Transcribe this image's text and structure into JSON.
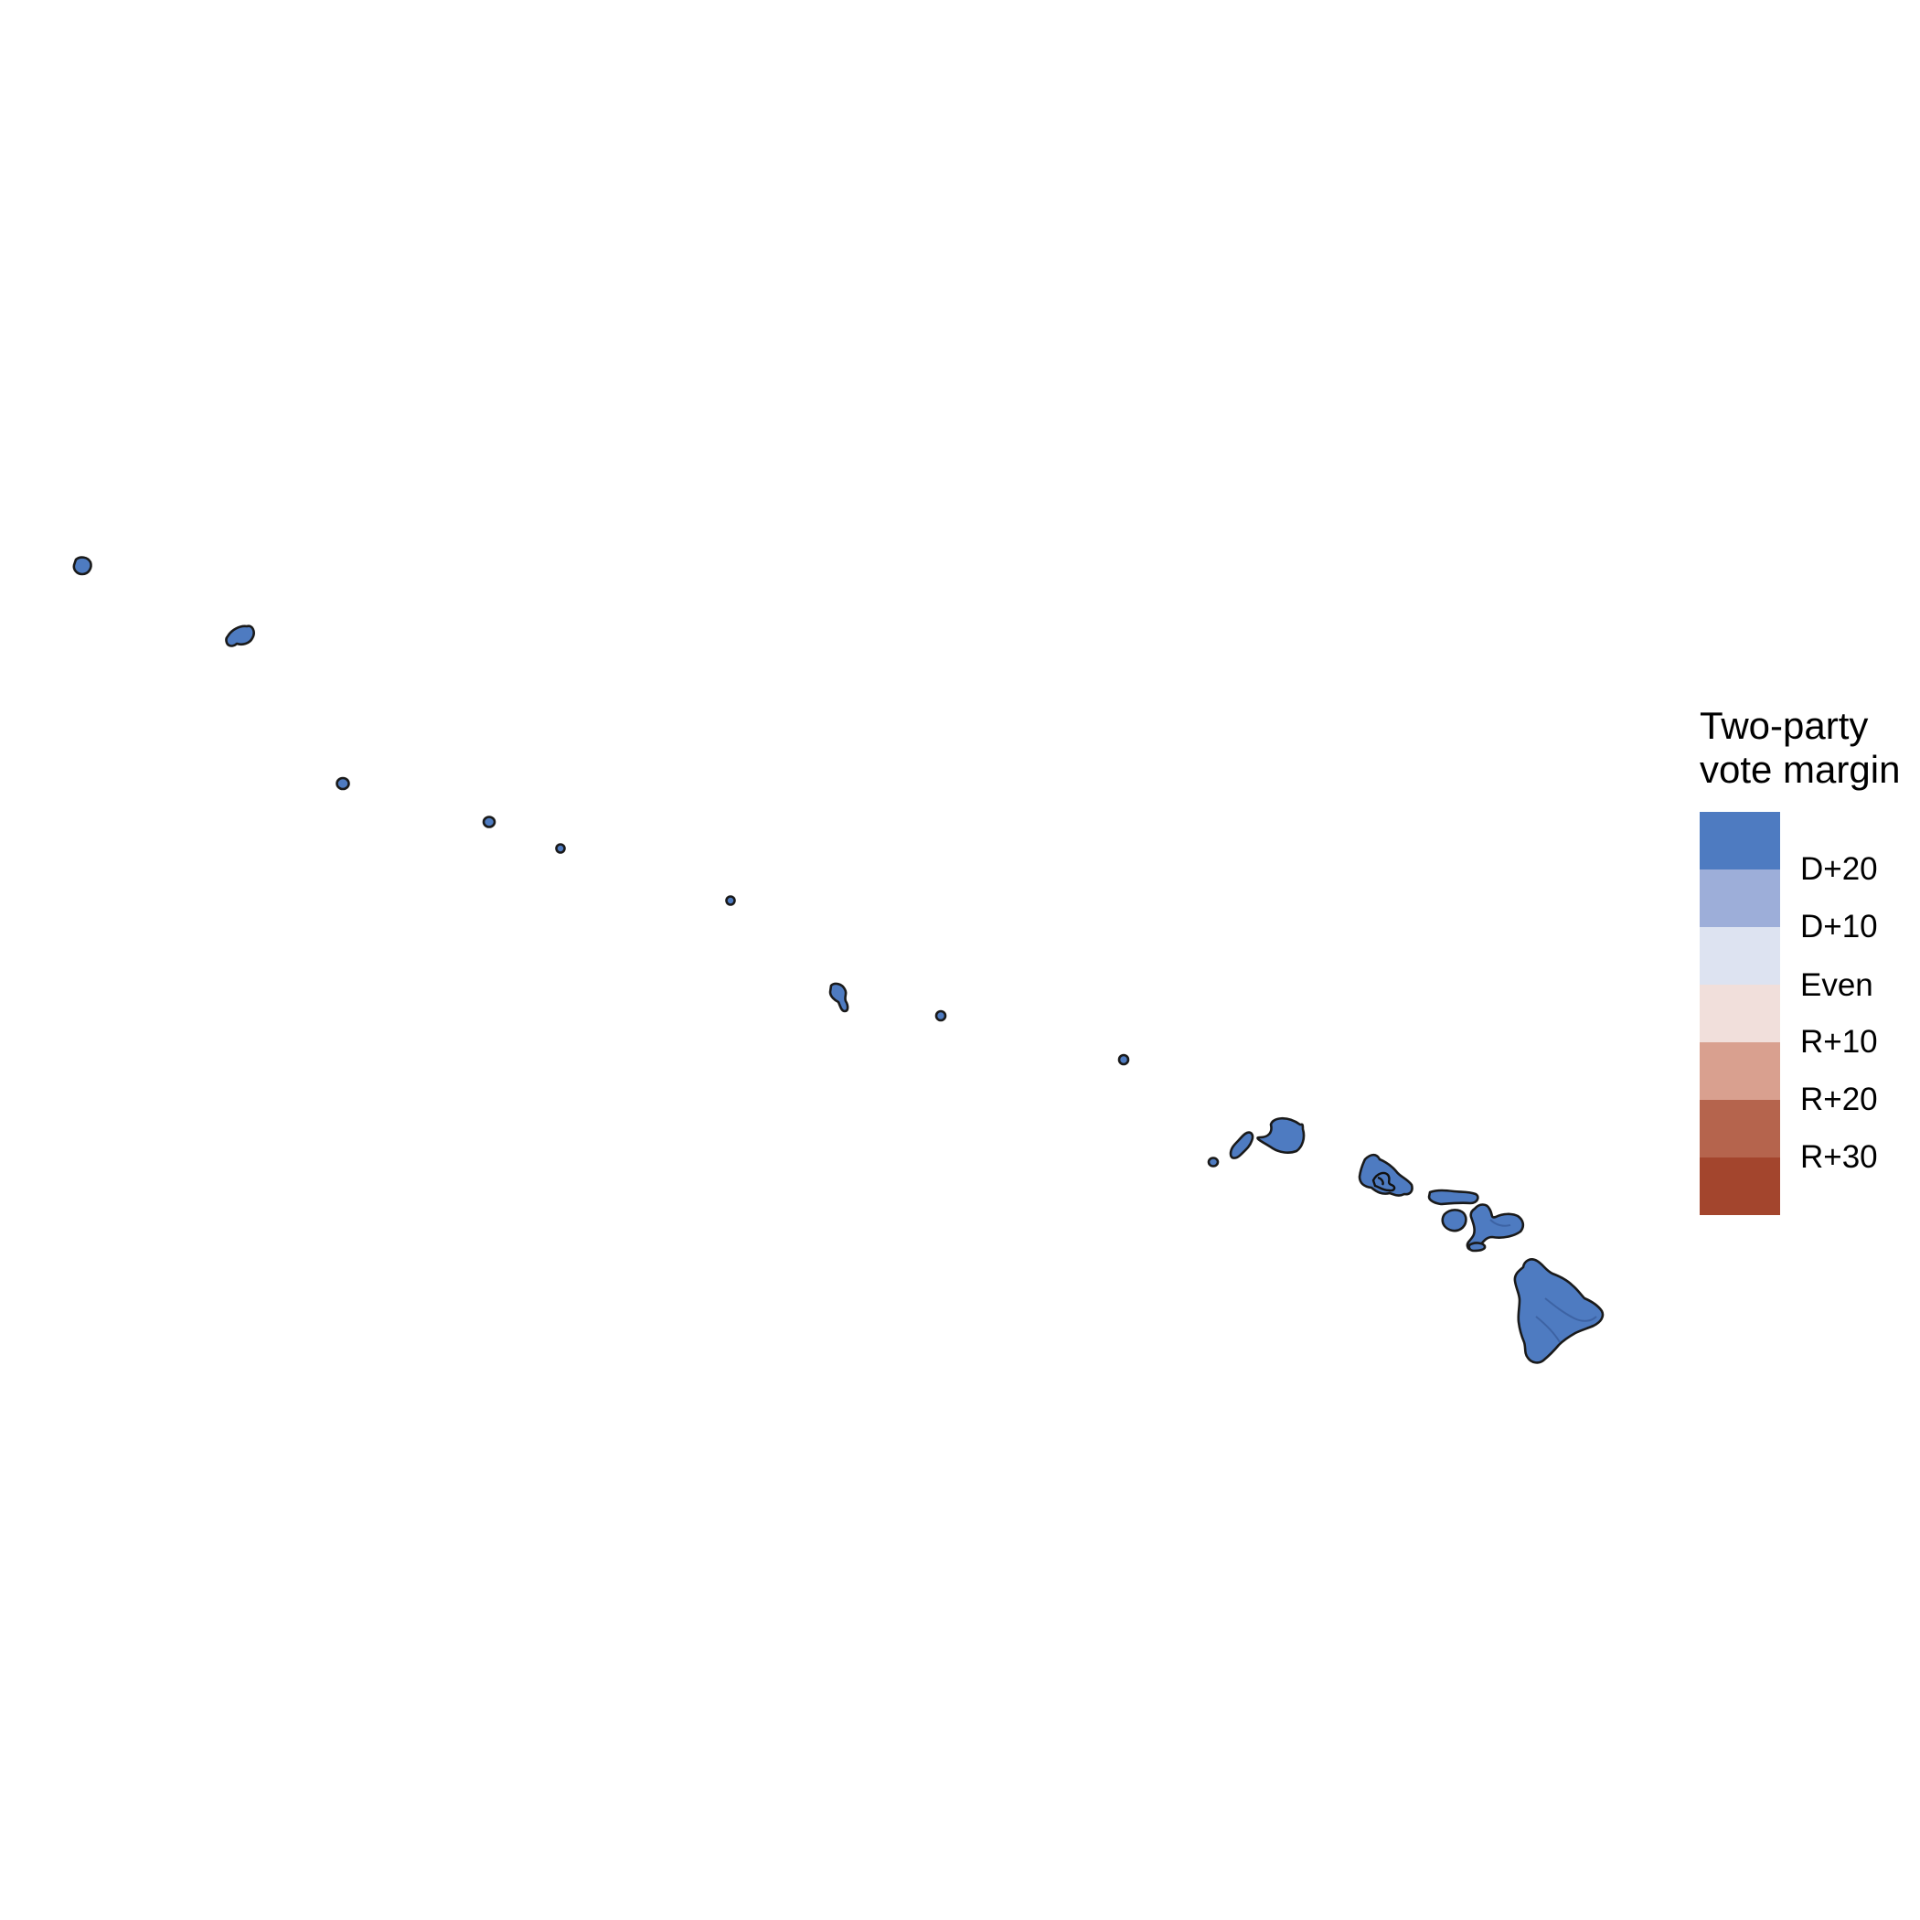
{
  "map": {
    "region": "Hawaii",
    "fill_color": "#4e7bc1",
    "outline_color": "#1a1a1a",
    "fill_category": "D+20 or more",
    "islands": [
      "nihoa-far-west",
      "necker-area",
      "gardner-pinnacles-area",
      "maro-reef-area",
      "laysan-area",
      "lisianski-area",
      "french-frigate-area",
      "small-islet-east",
      "nihoa",
      "niihau",
      "kauai",
      "oahu",
      "molokai",
      "lanai",
      "maui",
      "kahoolawe",
      "hawaii-big-island"
    ]
  },
  "legend": {
    "title_line1": "Two-party",
    "title_line2": "vote margin",
    "colors": [
      "#4e7bc1",
      "#9daed9",
      "#dde3f1",
      "#f1dfdb",
      "#d9a08f",
      "#b5644d",
      "#a3452d"
    ],
    "labels": [
      "D+20",
      "D+10",
      "Even",
      "R+10",
      "R+20",
      "R+30"
    ]
  }
}
